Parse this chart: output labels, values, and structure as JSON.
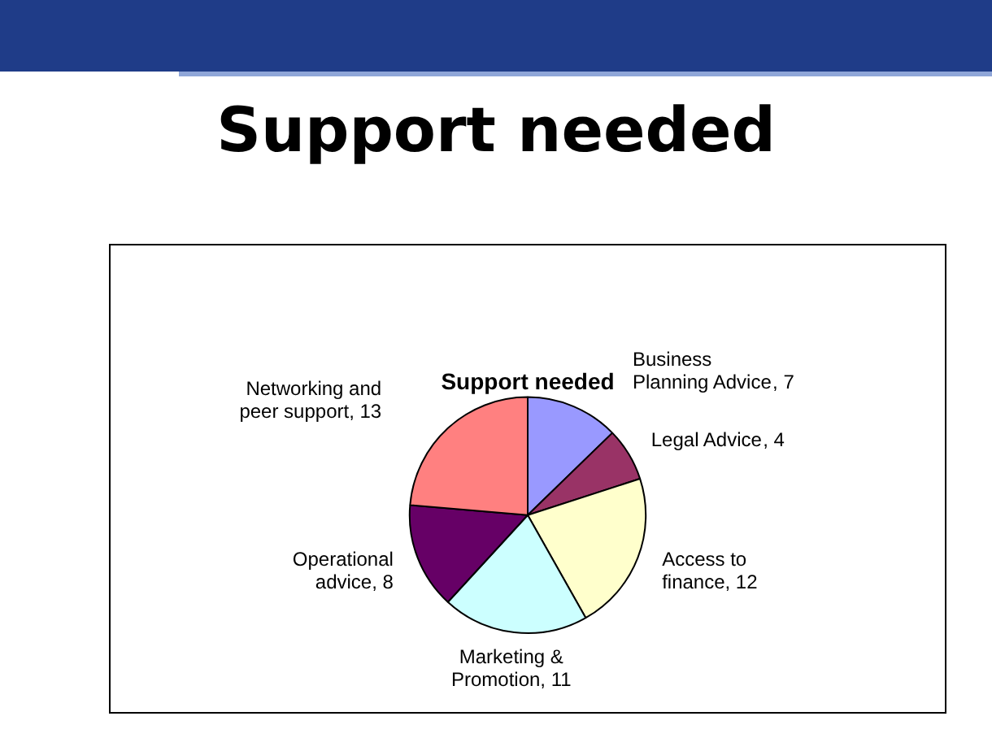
{
  "chart_data": {
    "type": "pie",
    "title": "Support needed",
    "subtitle": "Support needed",
    "categories": [
      "Business Planning Advice",
      "Legal Advice",
      "Access to finance",
      "Marketing & Promotion",
      "Operational advice",
      "Networking and peer support"
    ],
    "values": [
      7,
      4,
      12,
      11,
      8,
      13
    ],
    "colors": [
      "#9999ff",
      "#993366",
      "#ffffcc",
      "#ccffff",
      "#660066",
      "#ff8080"
    ],
    "value_labels": [
      ", 7",
      ", 4",
      ", 12",
      ", 11",
      ", 8",
      ", 13"
    ],
    "legend": false
  }
}
